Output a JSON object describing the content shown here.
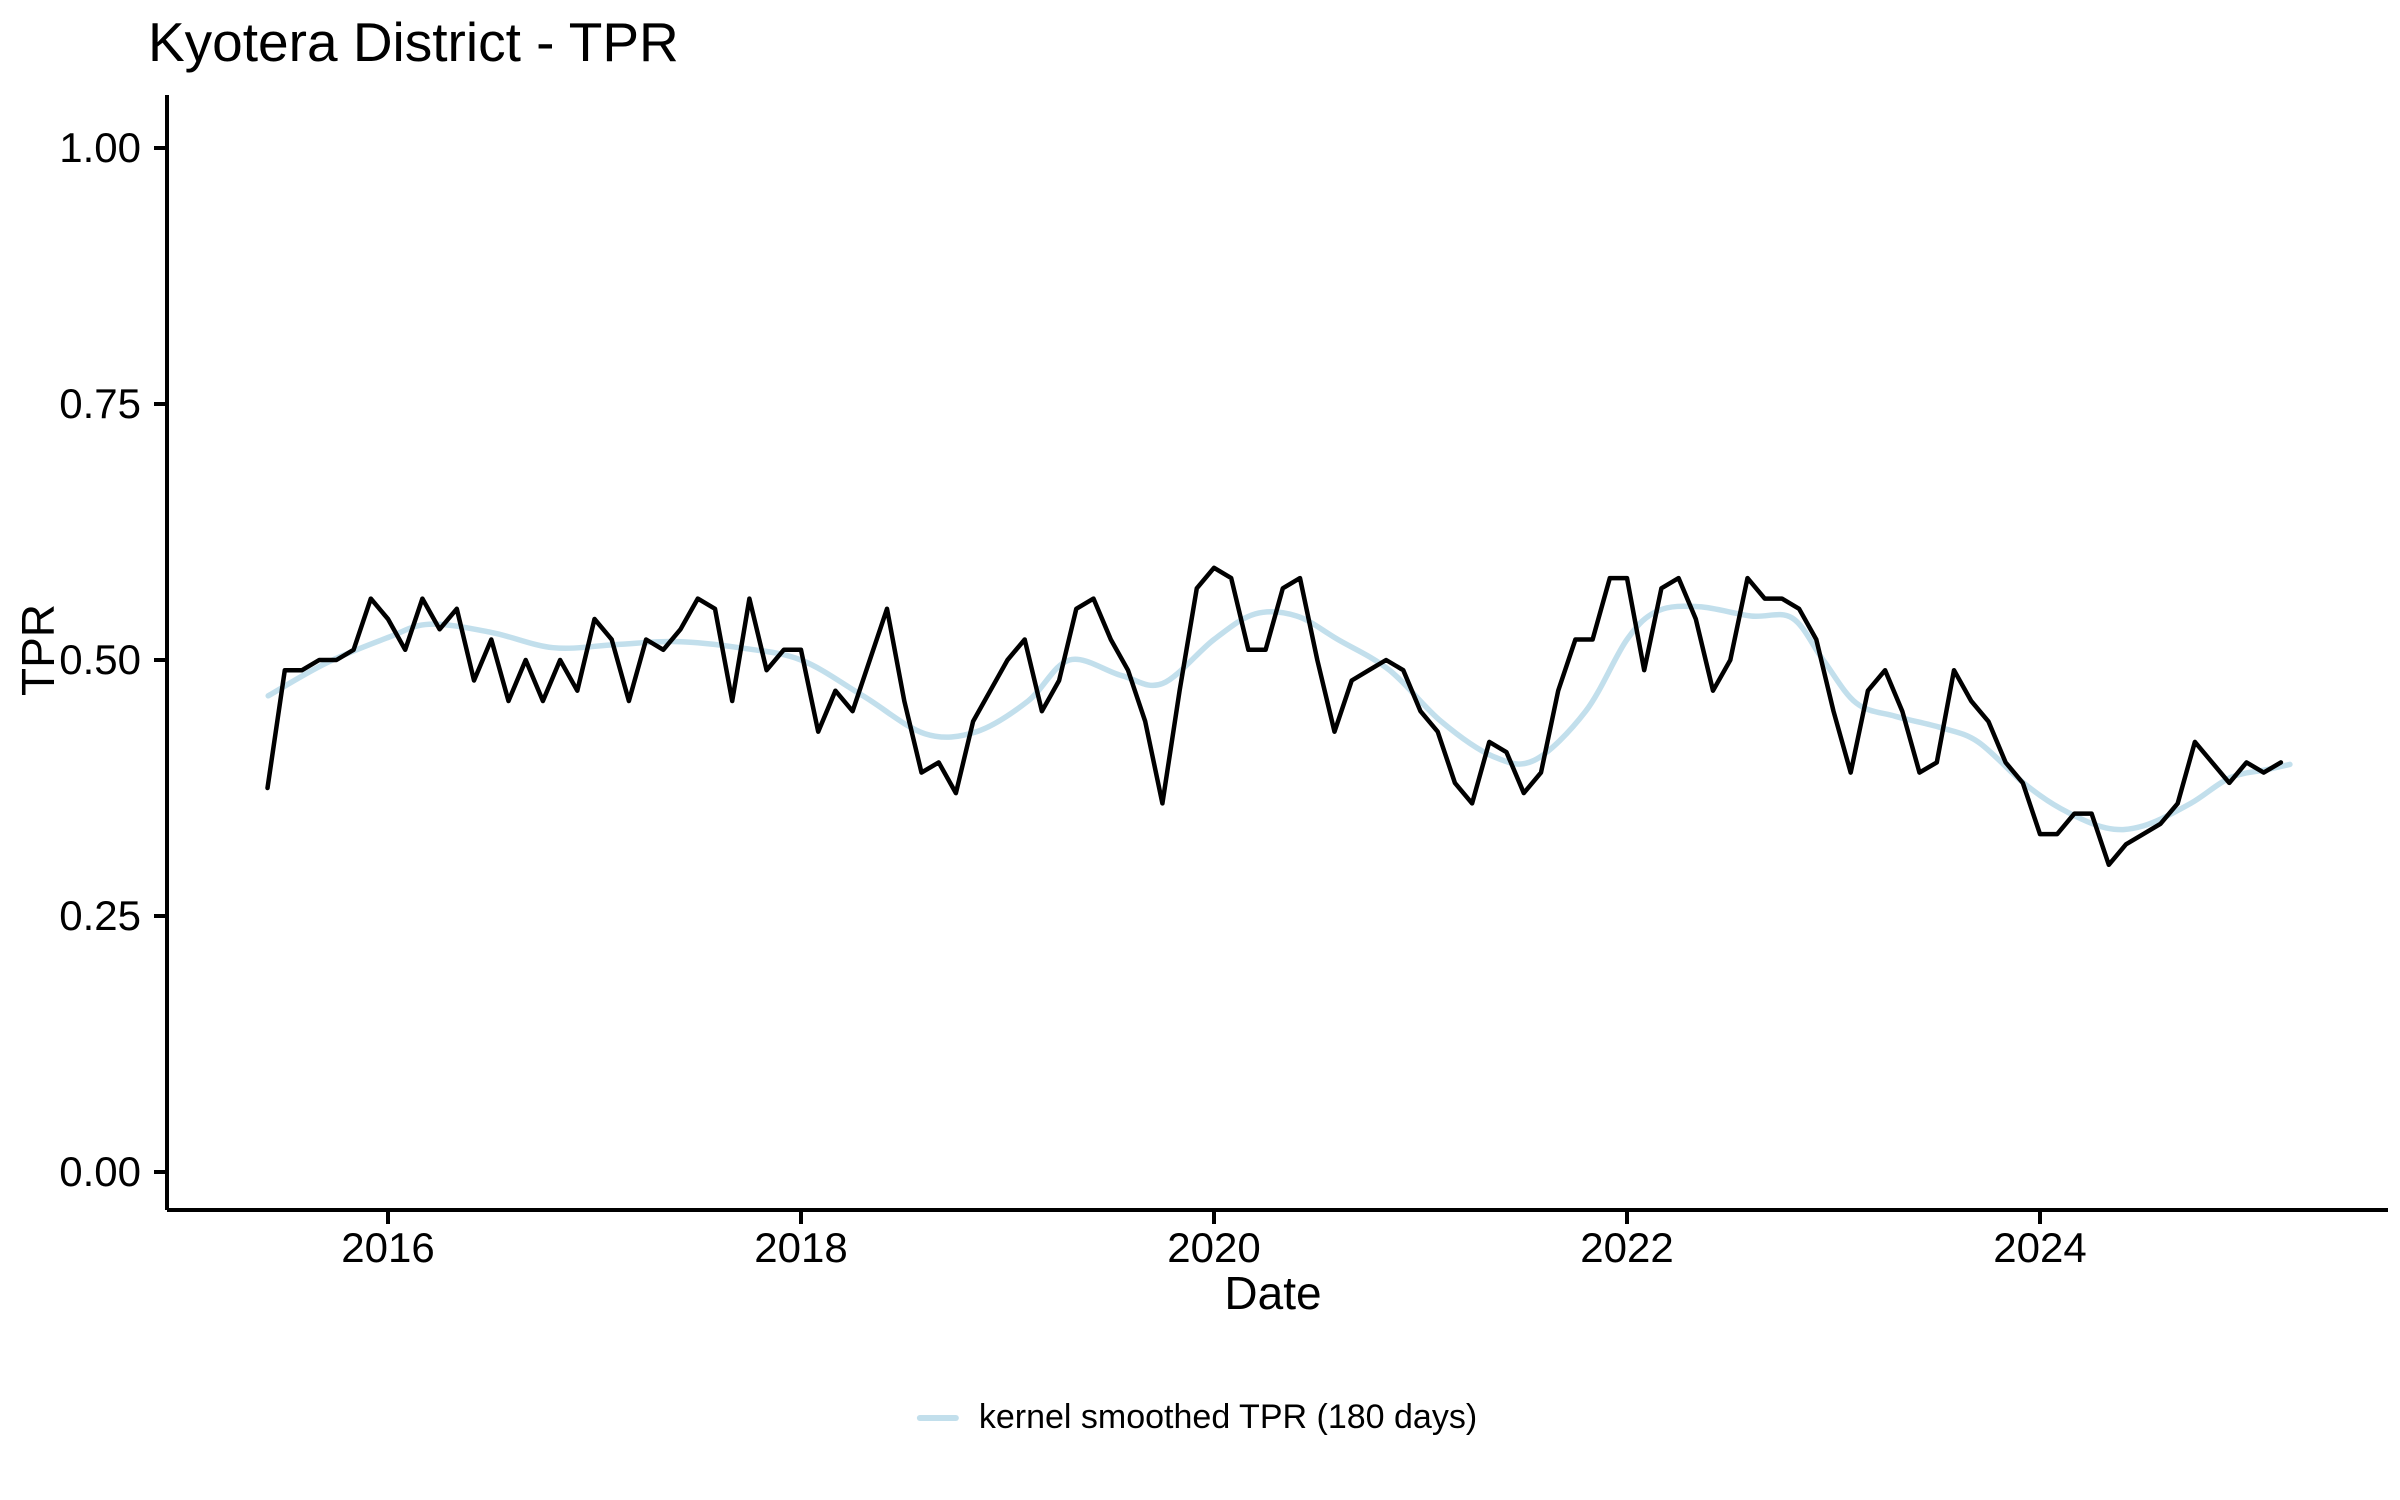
{
  "chart_data": {
    "type": "line",
    "title": "Kyotera District - TPR",
    "xlabel": "Date",
    "ylabel": "TPR",
    "x_tick_labels": [
      "2016",
      "2018",
      "2020",
      "2022",
      "2024"
    ],
    "y_tick_labels": [
      "0.00",
      "0.25",
      "0.50",
      "0.75",
      "1.00"
    ],
    "ylim": [
      0,
      1
    ],
    "xlim_years": [
      2014.93,
      2025.72
    ],
    "grid": false,
    "legend_position": "bottom",
    "legend": [
      {
        "label": "kernel smoothed TPR (180 days)",
        "color": "#c2dfec"
      }
    ],
    "colors": {
      "tpr_line": "#000000",
      "smoothed_line": "#c2dfec",
      "axis": "#000000",
      "text": "#000000"
    },
    "series": [
      {
        "name": "TPR",
        "type": "line",
        "color": "#000000",
        "start_year": 2015,
        "start_month": 5,
        "frequency": "monthly",
        "values": [
          0.375,
          0.49,
          0.49,
          0.5,
          0.5,
          0.51,
          0.56,
          0.54,
          0.51,
          0.56,
          0.53,
          0.55,
          0.48,
          0.52,
          0.46,
          0.5,
          0.46,
          0.5,
          0.47,
          0.54,
          0.52,
          0.46,
          0.52,
          0.51,
          0.53,
          0.56,
          0.55,
          0.46,
          0.56,
          0.49,
          0.51,
          0.51,
          0.43,
          0.47,
          0.45,
          0.5,
          0.55,
          0.46,
          0.39,
          0.4,
          0.37,
          0.44,
          0.47,
          0.5,
          0.52,
          0.45,
          0.48,
          0.55,
          0.56,
          0.52,
          0.49,
          0.44,
          0.36,
          0.47,
          0.57,
          0.59,
          0.58,
          0.51,
          0.51,
          0.57,
          0.58,
          0.5,
          0.43,
          0.48,
          0.49,
          0.5,
          0.49,
          0.45,
          0.43,
          0.38,
          0.36,
          0.42,
          0.41,
          0.37,
          0.39,
          0.47,
          0.52,
          0.52,
          0.58,
          0.58,
          0.49,
          0.57,
          0.58,
          0.54,
          0.47,
          0.5,
          0.58,
          0.56,
          0.56,
          0.55,
          0.52,
          0.45,
          0.39,
          0.47,
          0.49,
          0.45,
          0.39,
          0.4,
          0.49,
          0.46,
          0.44,
          0.4,
          0.38,
          0.33,
          0.33,
          0.35,
          0.35,
          0.3,
          0.32,
          0.33,
          0.34,
          0.36,
          0.42,
          0.4,
          0.38,
          0.4,
          0.39,
          0.4
        ]
      },
      {
        "name": "kernel smoothed TPR (180 days)",
        "type": "smooth",
        "color": "#c2dfec",
        "x_years": [
          2015.42,
          2015.7,
          2016.0,
          2016.2,
          2016.5,
          2016.8,
          2017.1,
          2017.4,
          2017.7,
          2018.0,
          2018.3,
          2018.6,
          2018.85,
          2019.1,
          2019.3,
          2019.55,
          2019.75,
          2020.0,
          2020.2,
          2020.4,
          2020.6,
          2020.85,
          2021.1,
          2021.35,
          2021.55,
          2021.8,
          2022.0,
          2022.15,
          2022.35,
          2022.6,
          2022.8,
          2022.95,
          2023.11,
          2023.3,
          2023.52,
          2023.7,
          2023.92,
          2024.1,
          2024.32,
          2024.5,
          2024.73,
          2024.92,
          2025.1,
          2025.21
        ],
        "values": [
          0.465,
          0.497,
          0.522,
          0.535,
          0.527,
          0.512,
          0.515,
          0.518,
          0.512,
          0.5,
          0.465,
          0.428,
          0.43,
          0.46,
          0.5,
          0.485,
          0.477,
          0.52,
          0.545,
          0.543,
          0.52,
          0.49,
          0.44,
          0.406,
          0.402,
          0.45,
          0.52,
          0.548,
          0.552,
          0.543,
          0.541,
          0.5,
          0.458,
          0.445,
          0.434,
          0.42,
          0.38,
          0.355,
          0.336,
          0.338,
          0.36,
          0.385,
          0.393,
          0.398
        ]
      }
    ]
  }
}
